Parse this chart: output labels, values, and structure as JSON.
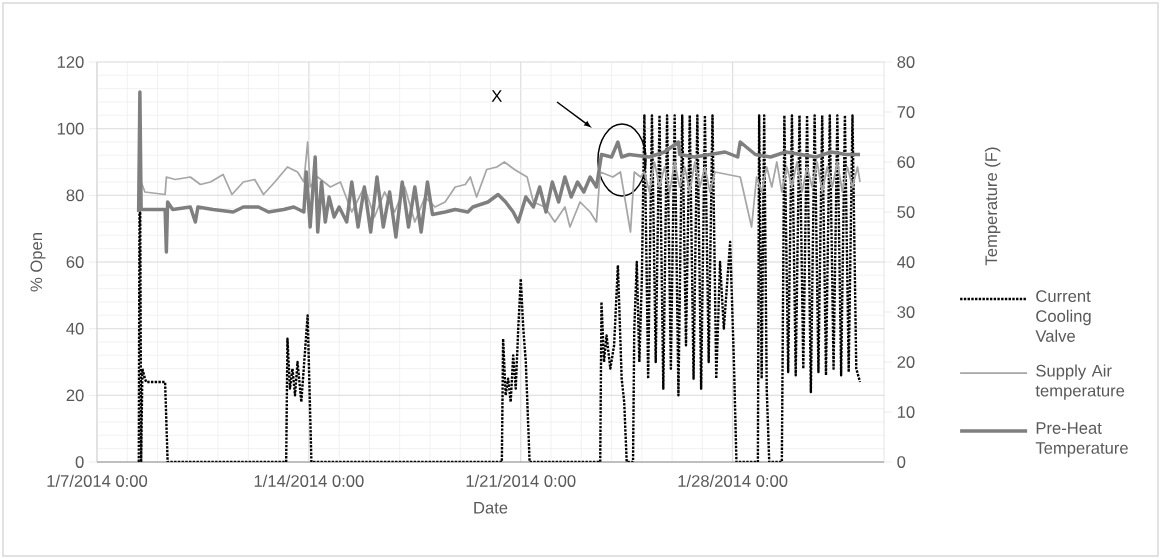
{
  "chart_data": {
    "type": "line",
    "xlabel": "Date",
    "ylabel": "% Open",
    "y2label": "Temperature (F)",
    "xlim": [
      "2014-01-07",
      "2014-02-02"
    ],
    "xticks": [
      {
        "value": "2014-01-07",
        "label": "1/7/2014 0:00"
      },
      {
        "value": "2014-01-14",
        "label": "1/14/2014 0:00"
      },
      {
        "value": "2014-01-21",
        "label": "1/21/2014 0:00"
      },
      {
        "value": "2014-01-28",
        "label": "1/28/2014 0:00"
      }
    ],
    "ylim": [
      0,
      120
    ],
    "yticks": [
      0,
      20,
      40,
      60,
      80,
      100,
      120
    ],
    "y2lim": [
      0,
      80
    ],
    "y2ticks": [
      0,
      10,
      20,
      30,
      40,
      50,
      60,
      70,
      80
    ],
    "grid": true,
    "legend": "right",
    "annotations": [
      "X"
    ],
    "series": [
      {
        "name": "Current Cooling Valve",
        "color": "#000000",
        "line_style": "dotted",
        "x": [
          "2014-01-08T09:00",
          "2014-01-08T10:00",
          "2014-01-08T11:00",
          "2014-01-08T12:00",
          "2014-01-08T14:00",
          "2014-01-08T15:00",
          "2014-01-09T06:00",
          "2014-01-09T08:00",
          "2014-01-13T06:00",
          "2014-01-13T07:00",
          "2014-01-13T09:00",
          "2014-01-13T11:00",
          "2014-01-13T13:00",
          "2014-01-13T15:00",
          "2014-01-13T18:00",
          "2014-01-13T23:00",
          "2014-01-14T02:00",
          "2014-01-20T09:00",
          "2014-01-20T10:00",
          "2014-01-20T12:00",
          "2014-01-20T14:00",
          "2014-01-20T16:00",
          "2014-01-20T18:00",
          "2014-01-20T20:00",
          "2014-01-20T22:00",
          "2014-01-21T00:00",
          "2014-01-21T02:00",
          "2014-01-21T04:00",
          "2014-01-21T07:00",
          "2014-01-23T15:00",
          "2014-01-23T16:00",
          "2014-01-23T18:00",
          "2014-01-23T20:00",
          "2014-01-23T23:00",
          "2014-01-24T02:00",
          "2014-01-24T05:00",
          "2014-01-24T08:00",
          "2014-01-24T10:00",
          "2014-01-24T12:00",
          "2014-01-24T17:00",
          "2014-01-24T18:00",
          "2014-01-24T20:00",
          "2014-01-24T22:00",
          "2014-01-25T00:00",
          "2014-01-25T02:00",
          "2014-01-25T05:00",
          "2014-01-25T08:00",
          "2014-01-25T11:00",
          "2014-01-25T14:00",
          "2014-01-25T17:00",
          "2014-01-25T20:00",
          "2014-01-25T23:00",
          "2014-01-26T02:00",
          "2014-01-26T05:00",
          "2014-01-26T08:00",
          "2014-01-26T11:00",
          "2014-01-26T14:00",
          "2014-01-26T17:00",
          "2014-01-26T20:00",
          "2014-01-26T23:00",
          "2014-01-27T02:00",
          "2014-01-27T05:00",
          "2014-01-27T08:00",
          "2014-01-27T11:00",
          "2014-01-27T14:00",
          "2014-01-27T17:00",
          "2014-01-27T22:00",
          "2014-01-28T01:00",
          "2014-01-28T03:00",
          "2014-01-28T20:00",
          "2014-01-28T21:00",
          "2014-01-28T23:00",
          "2014-01-29T01:00",
          "2014-01-29T03:00",
          "2014-01-29T05:00",
          "2014-01-29T15:00",
          "2014-01-29T17:00",
          "2014-01-29T20:00",
          "2014-01-29T23:00",
          "2014-01-30T02:00",
          "2014-01-30T05:00",
          "2014-01-30T08:00",
          "2014-01-30T11:00",
          "2014-01-30T14:00",
          "2014-01-30T17:00",
          "2014-01-30T20:00",
          "2014-01-30T23:00",
          "2014-01-31T02:00",
          "2014-01-31T05:00",
          "2014-01-31T08:00",
          "2014-01-31T11:00",
          "2014-01-31T14:00",
          "2014-01-31T17:00",
          "2014-01-31T20:00",
          "2014-01-31T23:00",
          "2014-02-01T02:00",
          "2014-02-01T05:00"
        ],
        "values": [
          0,
          104,
          0,
          28,
          25,
          24,
          24,
          0,
          0,
          37,
          22,
          28,
          20,
          30,
          18,
          44,
          0,
          0,
          37,
          20,
          25,
          18,
          32,
          22,
          40,
          55,
          40,
          30,
          0,
          0,
          48,
          30,
          38,
          28,
          35,
          59,
          25,
          18,
          0,
          0,
          40,
          60,
          30,
          55,
          104,
          25,
          104,
          30,
          104,
          22,
          104,
          28,
          104,
          20,
          104,
          35,
          104,
          25,
          104,
          22,
          104,
          30,
          104,
          25,
          60,
          40,
          66,
          30,
          0,
          0,
          104,
          25,
          104,
          22,
          0,
          0,
          104,
          27,
          104,
          26,
          104,
          28,
          104,
          21,
          104,
          27,
          104,
          26,
          104,
          28,
          104,
          26,
          104,
          27,
          104,
          28,
          24
        ]
      },
      {
        "name": "Supply Air temperature",
        "color": "#a6a6a6",
        "line_style": "solid",
        "axis": "y2",
        "x": [
          "2014-01-08T09:00",
          "2014-01-08T11:00",
          "2014-01-08T14:00",
          "2014-01-09T06:00",
          "2014-01-09T07:00",
          "2014-01-09T14:00",
          "2014-01-10T02:00",
          "2014-01-10T10:00",
          "2014-01-10T18:00",
          "2014-01-11T04:00",
          "2014-01-11T11:00",
          "2014-01-11T20:00",
          "2014-01-12T05:00",
          "2014-01-12T12:00",
          "2014-01-12T21:00",
          "2014-01-13T07:00",
          "2014-01-13T15:00",
          "2014-01-13T20:00",
          "2014-01-13T23:00",
          "2014-01-14T01:00",
          "2014-01-14T07:00",
          "2014-01-14T17:00",
          "2014-01-15T01:00",
          "2014-01-15T10:00",
          "2014-01-15T20:00",
          "2014-01-16T04:00",
          "2014-01-16T12:00",
          "2014-01-16T20:00",
          "2014-01-17T04:00",
          "2014-01-17T12:00",
          "2014-01-17T20:00",
          "2014-01-18T04:00",
          "2014-01-18T12:00",
          "2014-01-18T20:00",
          "2014-01-19T04:00",
          "2014-01-19T08:00",
          "2014-01-19T13:00",
          "2014-01-19T21:00",
          "2014-01-20T05:00",
          "2014-01-20T11:00",
          "2014-01-20T19:00",
          "2014-01-21T05:00",
          "2014-01-21T10:00",
          "2014-01-21T19:00",
          "2014-01-22T03:00",
          "2014-01-22T11:00",
          "2014-01-22T15:00",
          "2014-01-22T23:00",
          "2014-01-23T07:00",
          "2014-01-23T12:00",
          "2014-01-23T15:00",
          "2014-01-24T01:00",
          "2014-01-24T07:00",
          "2014-01-24T15:00",
          "2014-01-24T18:00",
          "2014-01-24T23:00",
          "2014-01-25T02:00",
          "2014-01-25T06:00",
          "2014-01-25T10:00",
          "2014-01-25T14:00",
          "2014-01-25T18:00",
          "2014-01-25T22:00",
          "2014-01-26T02:00",
          "2014-01-26T06:00",
          "2014-01-26T10:00",
          "2014-01-26T14:00",
          "2014-01-26T18:00",
          "2014-01-26T22:00",
          "2014-01-27T02:00",
          "2014-01-27T06:00",
          "2014-01-27T10:00",
          "2014-01-28T06:00",
          "2014-01-28T15:00",
          "2014-01-28T19:00",
          "2014-01-28T23:00",
          "2014-01-29T03:00",
          "2014-01-29T07:00",
          "2014-01-29T11:00",
          "2014-01-29T15:00",
          "2014-01-29T19:00",
          "2014-01-29T23:00",
          "2014-01-30T03:00",
          "2014-01-30T07:00",
          "2014-01-30T11:00",
          "2014-01-30T15:00",
          "2014-01-30T19:00",
          "2014-01-30T23:00",
          "2014-01-31T03:00",
          "2014-01-31T07:00",
          "2014-01-31T11:00",
          "2014-01-31T15:00",
          "2014-01-31T19:00",
          "2014-01-31T23:00",
          "2014-02-01T03:00",
          "2014-02-01T05:00"
        ],
        "values": [
          52,
          56,
          54,
          53.5,
          57,
          56.5,
          57,
          55.5,
          56,
          57.5,
          53.5,
          56,
          56.5,
          53.5,
          56,
          59,
          58,
          56,
          64,
          55,
          57,
          55,
          56,
          50,
          55,
          49,
          54,
          50,
          55,
          48,
          53,
          51,
          52,
          55,
          55.5,
          57,
          53,
          58.5,
          59,
          60,
          58.5,
          57,
          52,
          51,
          48,
          51,
          47,
          52,
          50,
          48,
          58,
          57,
          58,
          46,
          58,
          57,
          58,
          54,
          60,
          55,
          59,
          54,
          60,
          55,
          59,
          54,
          60,
          55,
          59,
          54,
          58,
          57,
          47,
          57,
          54,
          59,
          55,
          60,
          54,
          59,
          55,
          60,
          54,
          59,
          55,
          60,
          54,
          59,
          55,
          60,
          54,
          59,
          55,
          59,
          56
        ]
      },
      {
        "name": "Pre-Heat Temperature",
        "color": "#7f7f7f",
        "line_style": "solid",
        "axis": "y2",
        "x": [
          "2014-01-08T09:00",
          "2014-01-08T10:00",
          "2014-01-08T11:00",
          "2014-01-09T06:00",
          "2014-01-09T07:00",
          "2014-01-09T08:00",
          "2014-01-09T12:00",
          "2014-01-10T02:00",
          "2014-01-10T06:00",
          "2014-01-10T08:00",
          "2014-01-10T20:00",
          "2014-01-11T12:00",
          "2014-01-11T20:00",
          "2014-01-12T08:00",
          "2014-01-12T16:00",
          "2014-01-13T04:00",
          "2014-01-13T12:00",
          "2014-01-13T20:00",
          "2014-01-13T22:00",
          "2014-01-14T01:00",
          "2014-01-14T05:00",
          "2014-01-14T07:00",
          "2014-01-14T10:00",
          "2014-01-14T13:00",
          "2014-01-14T16:00",
          "2014-01-14T20:00",
          "2014-01-15T00:00",
          "2014-01-15T06:00",
          "2014-01-15T10:00",
          "2014-01-15T15:00",
          "2014-01-15T20:00",
          "2014-01-16T01:00",
          "2014-01-16T06:00",
          "2014-01-16T11:00",
          "2014-01-16T16:00",
          "2014-01-16T21:00",
          "2014-01-17T02:00",
          "2014-01-17T07:00",
          "2014-01-17T12:00",
          "2014-01-17T17:00",
          "2014-01-17T22:00",
          "2014-01-18T02:00",
          "2014-01-18T12:00",
          "2014-01-18T20:00",
          "2014-01-19T06:00",
          "2014-01-19T10:00",
          "2014-01-19T16:00",
          "2014-01-19T22:00",
          "2014-01-20T06:00",
          "2014-01-20T12:00",
          "2014-01-20T18:00",
          "2014-01-20T22:00",
          "2014-01-21T04:00",
          "2014-01-21T10:00",
          "2014-01-21T15:00",
          "2014-01-21T20:00",
          "2014-01-22T01:00",
          "2014-01-22T06:00",
          "2014-01-22T11:00",
          "2014-01-22T16:00",
          "2014-01-22T21:00",
          "2014-01-23T02:00",
          "2014-01-23T07:00",
          "2014-01-23T12:00",
          "2014-01-23T16:00",
          "2014-01-24T00:00",
          "2014-01-24T05:00",
          "2014-01-24T08:00",
          "2014-01-24T14:00",
          "2014-01-25T06:00",
          "2014-01-25T18:00",
          "2014-01-26T05:00",
          "2014-01-26T06:00",
          "2014-01-26T18:00",
          "2014-01-27T06:00",
          "2014-01-27T18:00",
          "2014-01-28T04:00",
          "2014-01-28T06:00",
          "2014-01-28T18:00",
          "2014-01-29T06:00",
          "2014-01-29T18:00",
          "2014-01-30T06:00",
          "2014-01-30T18:00",
          "2014-01-31T06:00",
          "2014-01-31T18:00",
          "2014-02-01T05:00"
        ],
        "values": [
          50,
          74,
          50.5,
          50.5,
          42,
          52,
          50.5,
          51,
          48,
          51,
          50.5,
          50,
          51,
          51,
          50,
          50.5,
          51,
          50,
          58,
          47,
          61,
          46,
          56,
          48,
          53,
          49,
          51,
          48,
          56,
          47,
          55,
          46,
          57,
          47,
          54,
          45,
          56,
          47,
          55,
          46,
          56,
          49.5,
          50,
          50.5,
          50,
          51,
          51.5,
          52,
          53.5,
          52,
          50,
          48,
          53,
          51,
          55,
          50,
          56,
          52,
          57,
          53,
          56,
          54,
          57,
          55,
          61.5,
          61,
          64,
          61,
          61.5,
          61,
          62,
          64,
          61.5,
          61,
          61.5,
          62,
          61,
          64,
          61.5,
          61,
          62,
          61.5,
          61,
          62,
          61.5,
          61.5
        ]
      }
    ]
  }
}
